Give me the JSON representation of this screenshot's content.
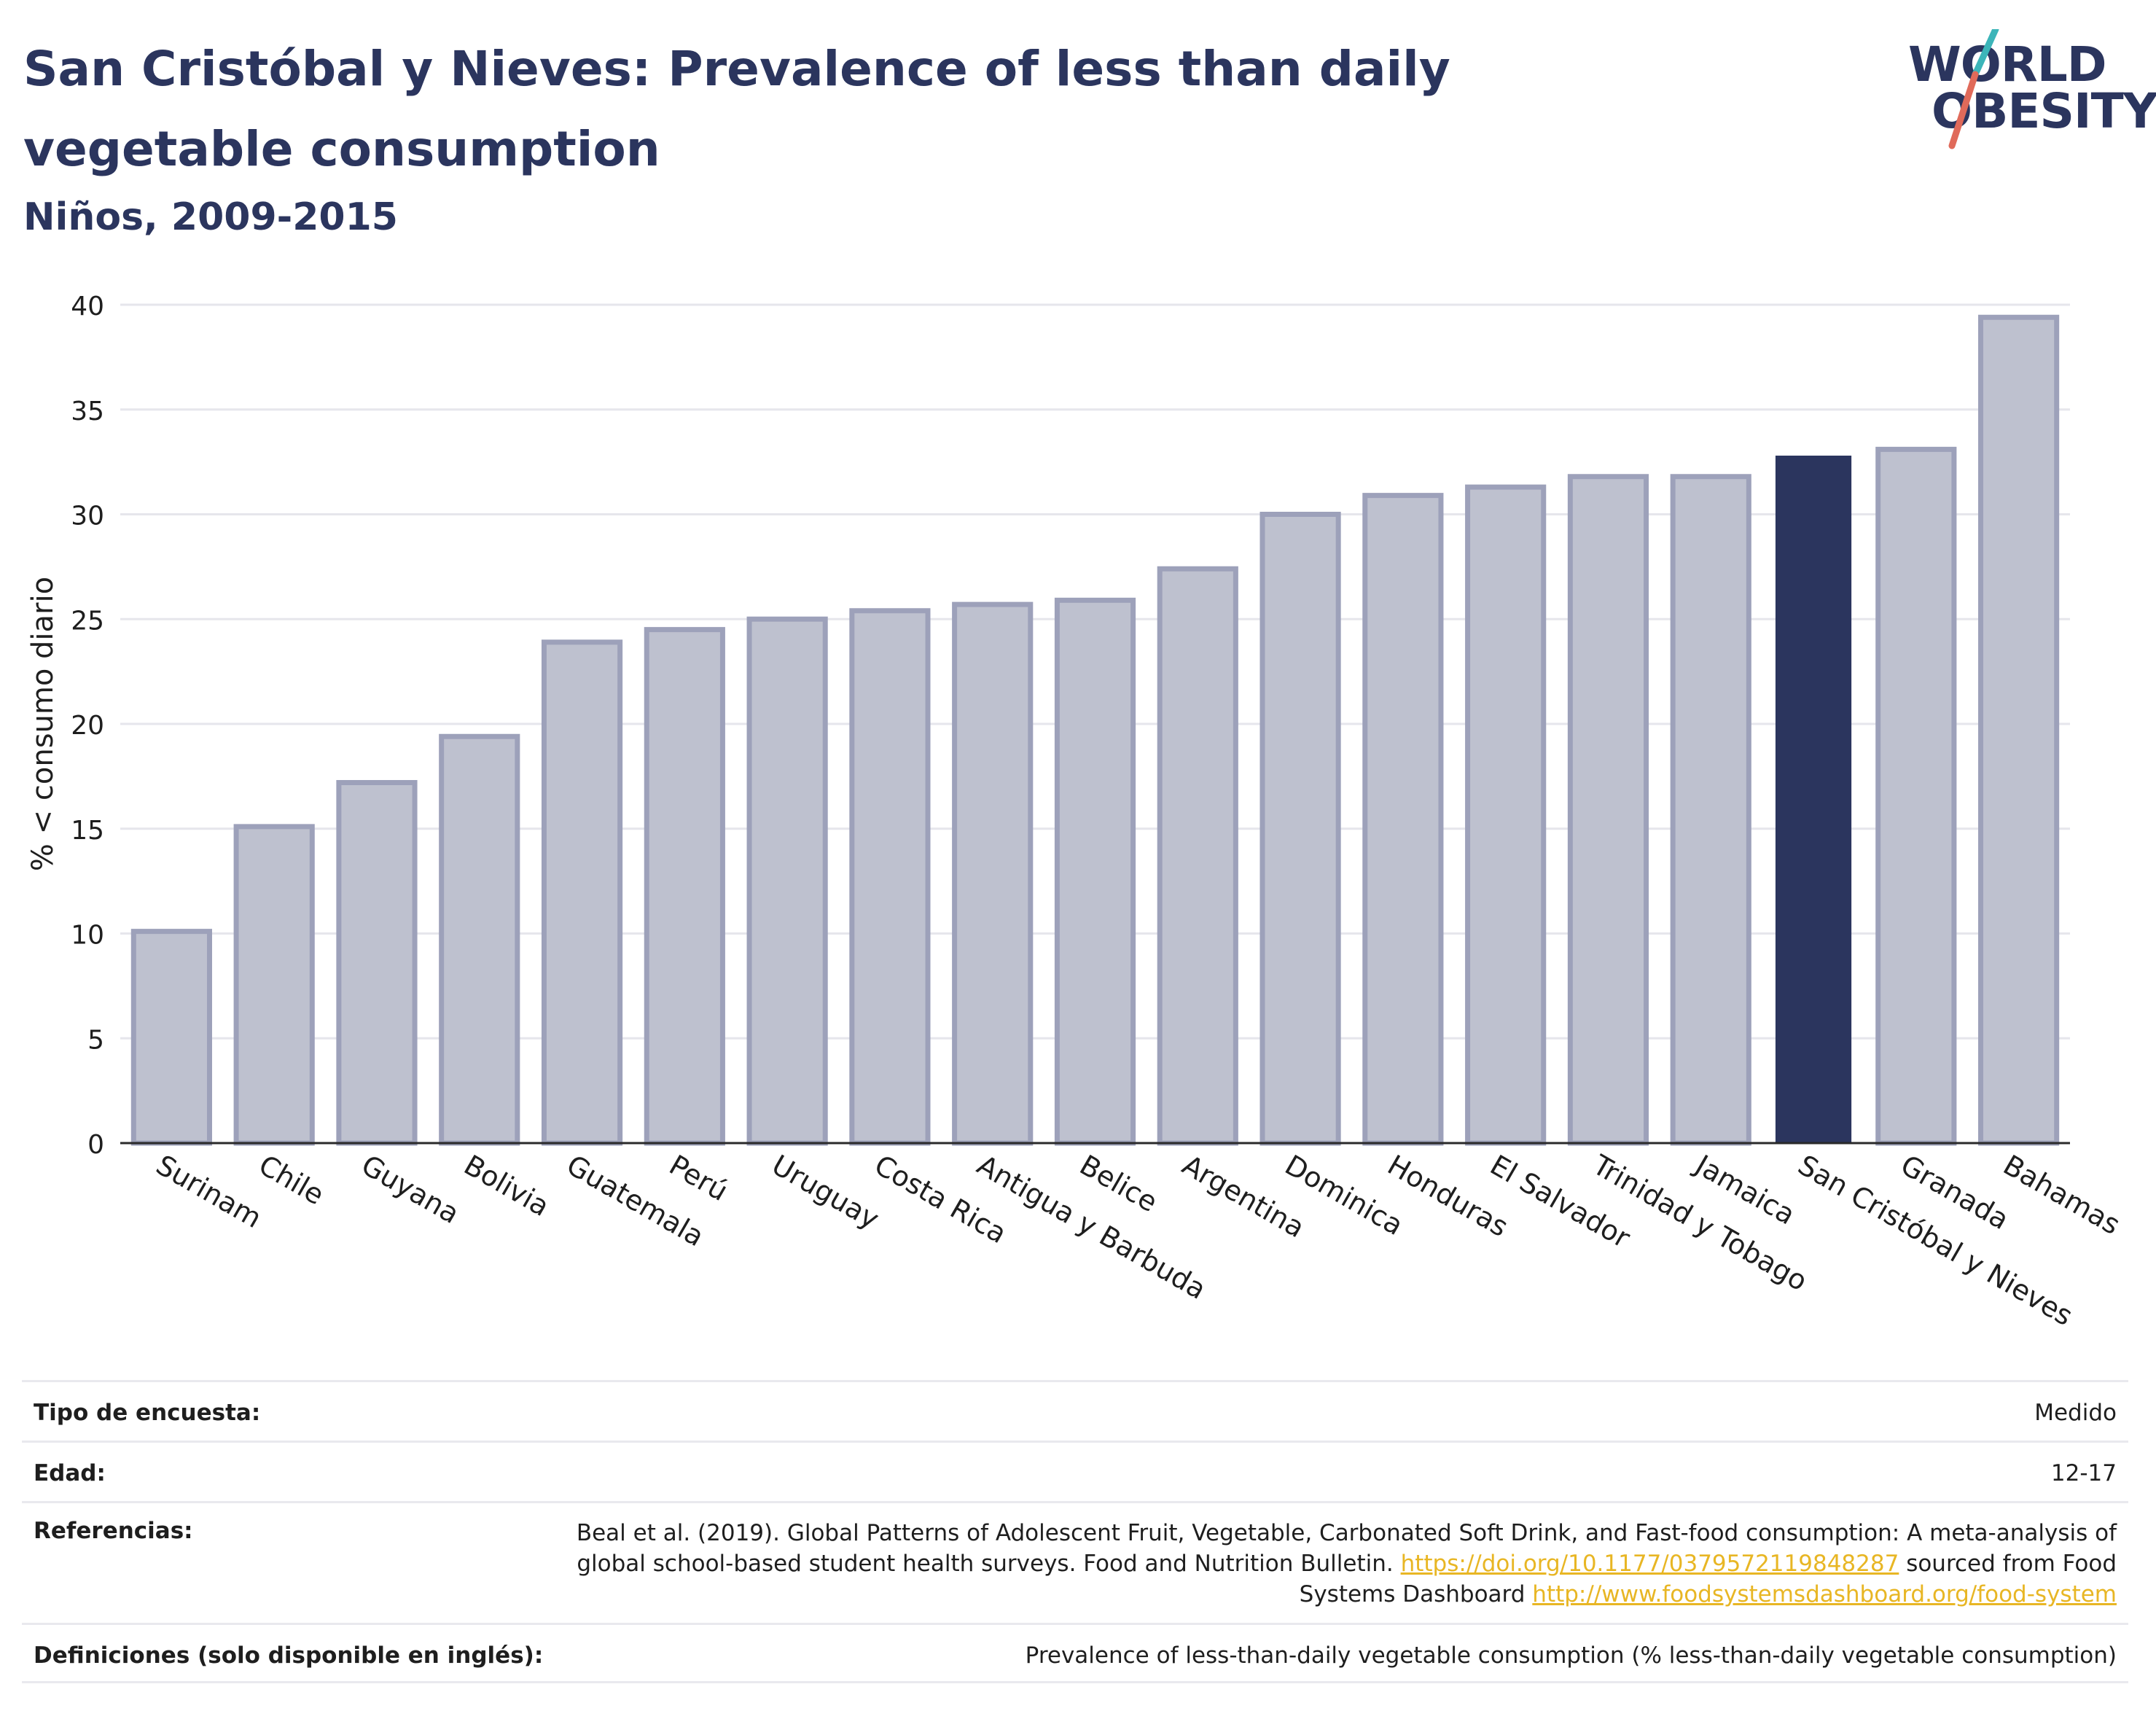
{
  "title": "San Cristóbal y Nieves: Prevalence of less than daily vegetable consumption",
  "subtitle": "Niños, 2009-2015",
  "logo": {
    "line1": "WORLD",
    "line2": "OBESITY"
  },
  "colors": {
    "bar": "#bec1cf",
    "bar_border": "#9da1ba",
    "highlight": "#2b355e",
    "grid": "#e6e6ec",
    "link": "#e8b624"
  },
  "chart_data": {
    "type": "bar",
    "ylabel": "% < consumo diario",
    "xlabel": "",
    "ylim": [
      0,
      40
    ],
    "yticks": [
      0,
      5,
      10,
      15,
      20,
      25,
      30,
      35,
      40
    ],
    "grid": true,
    "highlight": "San Cristóbal y Nieves",
    "categories": [
      "Surinam",
      "Chile",
      "Guyana",
      "Bolivia",
      "Guatemala",
      "Perú",
      "Uruguay",
      "Costa Rica",
      "Antigua y Barbuda",
      "Belice",
      "Argentina",
      "Dominica",
      "Honduras",
      "El Salvador",
      "Trinidad y Tobago",
      "Jamaica",
      "San Cristóbal y Nieves",
      "Granada",
      "Bahamas"
    ],
    "values": [
      10.1,
      15.1,
      17.2,
      19.4,
      23.9,
      24.5,
      25.0,
      25.4,
      25.7,
      25.9,
      27.4,
      30.0,
      30.9,
      31.3,
      31.8,
      31.8,
      32.8,
      33.1,
      39.4
    ]
  },
  "info": {
    "survey_label": "Tipo de encuesta:",
    "survey_value": "Medido",
    "age_label": "Edad:",
    "age_value": "12-17",
    "ref_label": "Referencias:",
    "ref_text1": "Beal et al. (2019). Global Patterns of Adolescent Fruit, Vegetable, Carbonated Soft Drink, and Fast-food consumption: A meta-analysis of global school-based student health surveys. Food and Nutrition Bulletin.",
    "ref_link1": "https://doi.org/10.1177/0379572119848287",
    "ref_text2": "sourced from Food Systems Dashboard",
    "ref_link2": "http://www.foodsystemsdashboard.org/food-system",
    "def_label": "Definiciones (solo disponible en inglés):",
    "def_value": "Prevalence of less-than-daily vegetable consumption (% less-than-daily vegetable consumption)"
  }
}
